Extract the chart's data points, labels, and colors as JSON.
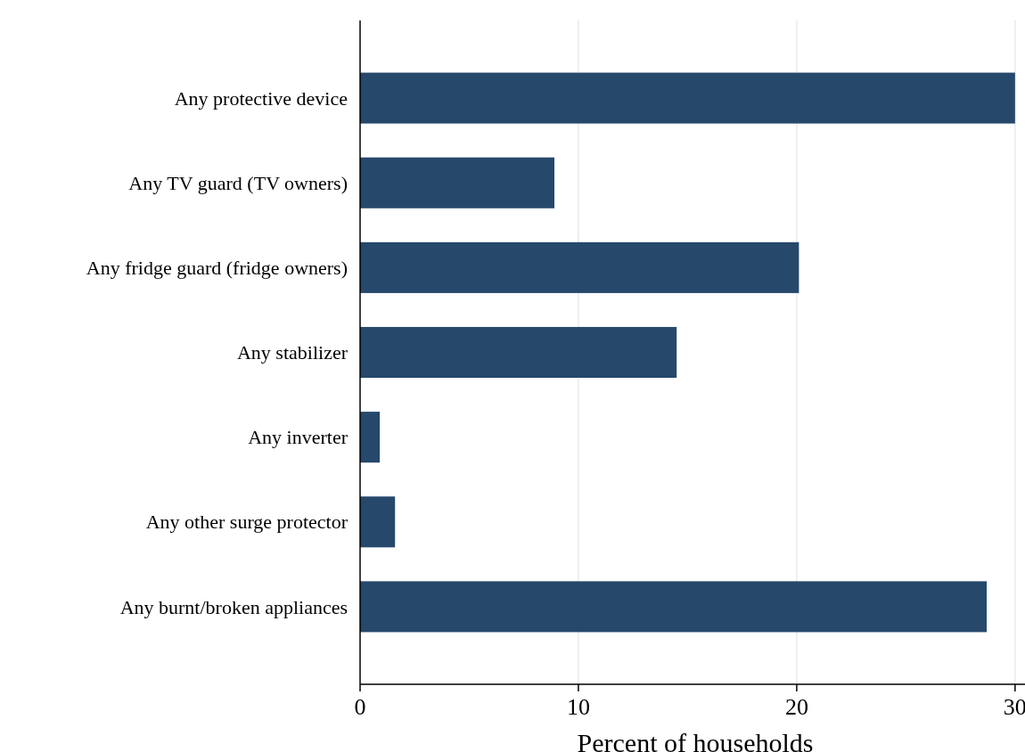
{
  "chart_data": {
    "type": "bar",
    "orientation": "horizontal",
    "xlabel": "Percent of households",
    "categories": [
      "Any protective device",
      "Any TV guard (TV owners)",
      "Any fridge guard (fridge owners)",
      "Any stabilizer",
      "Any inverter",
      "Any other surge protector",
      "Any burnt/broken appliances"
    ],
    "values": [
      30.0,
      8.9,
      20.1,
      14.5,
      0.9,
      1.6,
      28.7
    ],
    "color": "#26486b",
    "xlim": [
      0,
      30.7
    ],
    "xticks": [
      0,
      10,
      20,
      30
    ],
    "grid": "x"
  }
}
